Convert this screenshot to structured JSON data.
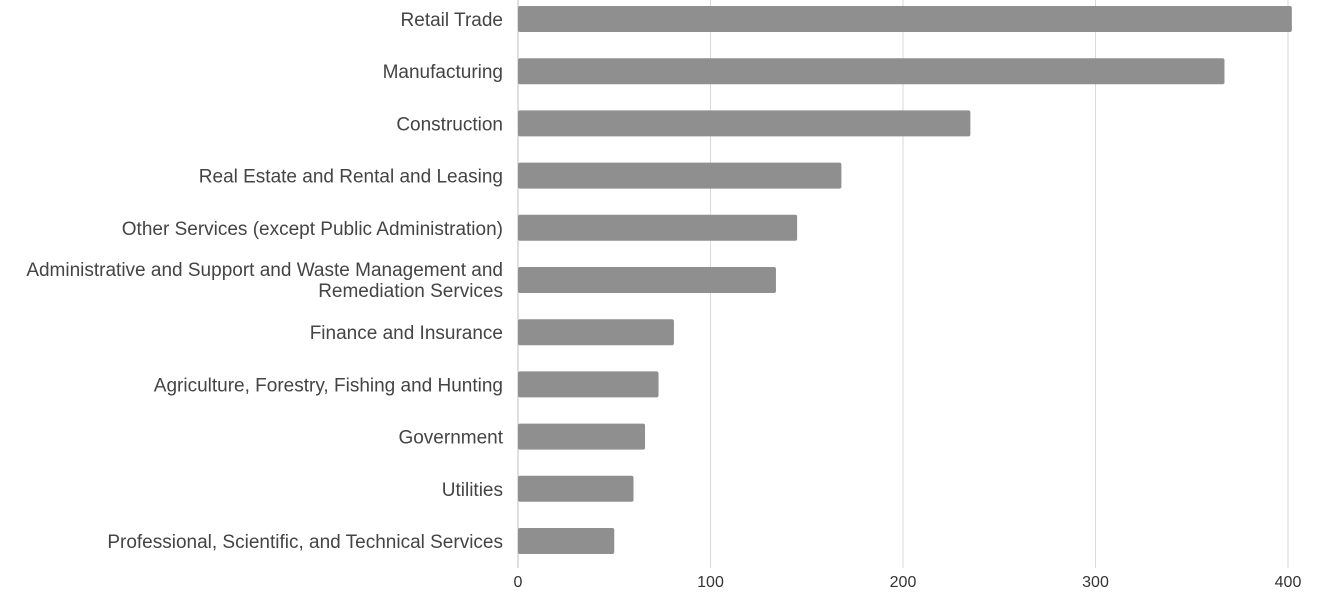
{
  "chart_data": {
    "type": "bar",
    "orientation": "horizontal",
    "title": "",
    "xlabel": "",
    "ylabel": "",
    "categories": [
      "Retail Trade",
      "Manufacturing",
      "Construction",
      "Real Estate and Rental and Leasing",
      "Other Services (except Public Administration)",
      "Administrative and Support and Waste Management and Remediation Services",
      "Finance and Insurance",
      "Agriculture, Forestry, Fishing and Hunting",
      "Government",
      "Utilities",
      "Professional, Scientific, and Technical Services"
    ],
    "values": [
      402,
      367,
      235,
      168,
      145,
      134,
      81,
      73,
      66,
      60,
      50
    ],
    "xlim": [
      0,
      400
    ],
    "xticks": [
      "0",
      "100",
      "200",
      "300",
      "400"
    ],
    "grid": true,
    "bar_color": "#8f8f8f"
  }
}
